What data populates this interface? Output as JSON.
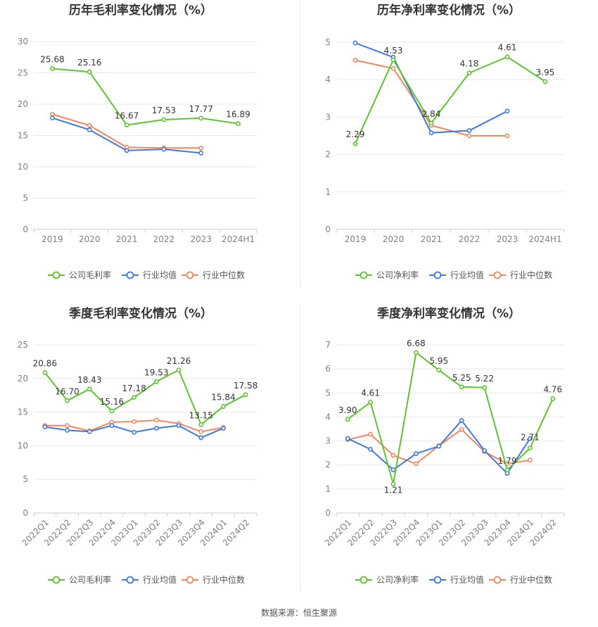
{
  "colors": {
    "company": "#5ec431",
    "industry_avg": "#3f78de",
    "industry_median": "#f3875f",
    "grid": "#e8e8e8",
    "axis": "#cccccc"
  },
  "source": "数据来源：恒生聚源",
  "chart_data": [
    {
      "type": "line",
      "title": "历年毛利率变化情况（%）",
      "categories": [
        "2019",
        "2020",
        "2021",
        "2022",
        "2023",
        "2024H1"
      ],
      "ylim": [
        0,
        30
      ],
      "yticks": [
        0,
        5,
        10,
        15,
        20,
        25,
        30
      ],
      "rotate_x": false,
      "series": [
        {
          "name": "公司毛利率",
          "key": "company",
          "values": [
            25.68,
            25.16,
            16.67,
            17.53,
            17.77,
            16.89
          ],
          "labels": [
            "25.68",
            "25.16",
            "16.67",
            "17.53",
            "17.77",
            "16.89"
          ]
        },
        {
          "name": "行业均值",
          "key": "industry_avg",
          "values": [
            17.8,
            15.9,
            12.6,
            12.8,
            12.2,
            null
          ]
        },
        {
          "name": "行业中位数",
          "key": "industry_median",
          "values": [
            18.4,
            16.6,
            13.1,
            13.0,
            13.0,
            null
          ]
        }
      ]
    },
    {
      "type": "line",
      "title": "历年净利率变化情况（%）",
      "categories": [
        "2019",
        "2020",
        "2021",
        "2022",
        "2023",
        "2024H1"
      ],
      "ylim": [
        0,
        5
      ],
      "yticks": [
        0,
        1,
        2,
        3,
        4,
        5
      ],
      "rotate_x": false,
      "series": [
        {
          "name": "公司净利率",
          "key": "company",
          "values": [
            2.29,
            4.53,
            2.84,
            4.18,
            4.61,
            3.95
          ],
          "labels": [
            "2.29",
            "4.53",
            "2.84",
            "4.18",
            "4.61",
            "3.95"
          ]
        },
        {
          "name": "行业均值",
          "key": "industry_avg",
          "values": [
            4.98,
            4.6,
            2.58,
            2.64,
            3.16,
            null
          ]
        },
        {
          "name": "行业中位数",
          "key": "industry_median",
          "values": [
            4.52,
            4.3,
            2.78,
            2.5,
            2.5,
            null
          ]
        }
      ]
    },
    {
      "type": "line",
      "title": "季度毛利率变化情况（%）",
      "categories": [
        "2022Q1",
        "2022Q2",
        "2022Q3",
        "2022Q4",
        "2023Q1",
        "2023Q2",
        "2023Q3",
        "2023Q4",
        "2024Q1",
        "2024Q2"
      ],
      "ylim": [
        0,
        25
      ],
      "yticks": [
        0,
        5,
        10,
        15,
        20,
        25
      ],
      "rotate_x": true,
      "series": [
        {
          "name": "公司毛利率",
          "key": "company",
          "values": [
            20.86,
            16.7,
            18.43,
            15.16,
            17.18,
            19.53,
            21.26,
            13.15,
            15.84,
            17.58
          ],
          "labels": [
            "20.86",
            "16.70",
            "18.43",
            "15.16",
            "17.18",
            "19.53",
            "21.26",
            "13.15",
            "15.84",
            "17.58"
          ]
        },
        {
          "name": "行业均值",
          "key": "industry_avg",
          "values": [
            12.8,
            12.3,
            12.1,
            13.0,
            12.0,
            12.6,
            13.0,
            11.2,
            12.6,
            null
          ]
        },
        {
          "name": "行业中位数",
          "key": "industry_median",
          "values": [
            13.0,
            13.0,
            12.2,
            13.5,
            13.6,
            13.8,
            13.3,
            12.1,
            12.7,
            null
          ]
        }
      ]
    },
    {
      "type": "line",
      "title": "季度净利率变化情况（%）",
      "categories": [
        "2022Q1",
        "2022Q2",
        "2022Q3",
        "2022Q4",
        "2023Q1",
        "2023Q2",
        "2023Q3",
        "2023Q4",
        "2024Q1",
        "2024Q2"
      ],
      "ylim": [
        0,
        7
      ],
      "yticks": [
        0,
        1,
        2,
        3,
        4,
        5,
        6,
        7
      ],
      "rotate_x": true,
      "series": [
        {
          "name": "公司净利率",
          "key": "company",
          "values": [
            3.9,
            4.61,
            1.21,
            6.68,
            5.95,
            5.25,
            5.22,
            1.79,
            2.71,
            4.76
          ],
          "labels": [
            "3.90",
            "4.61",
            "1.21",
            "6.68",
            "5.95",
            "5.25",
            "5.22",
            "1.79",
            "2.71",
            "4.76"
          ]
        },
        {
          "name": "行业均值",
          "key": "industry_avg",
          "values": [
            3.1,
            2.65,
            1.8,
            2.47,
            2.78,
            3.85,
            2.6,
            1.65,
            3.1,
            null
          ]
        },
        {
          "name": "行业中位数",
          "key": "industry_median",
          "values": [
            3.05,
            3.28,
            2.4,
            2.05,
            2.8,
            3.48,
            2.55,
            2.05,
            2.2,
            null
          ]
        }
      ]
    }
  ]
}
